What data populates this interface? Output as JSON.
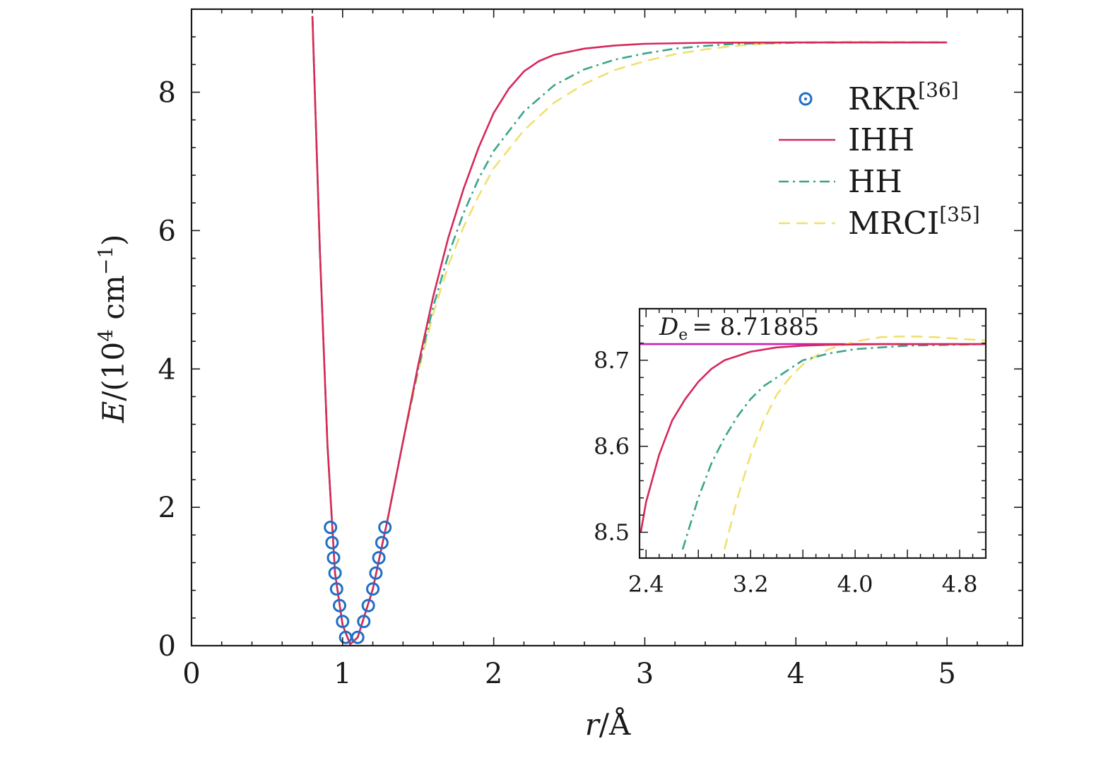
{
  "chart_data": [
    {
      "type": "line",
      "xlabel_var": "r",
      "xlabel_unit": "/Å",
      "ylabel_var": "E",
      "ylabel_unit_pre": "/(10",
      "ylabel_unit_sup": "4",
      "ylabel_unit_mid": " cm",
      "ylabel_unit_sup2": "−1",
      "ylabel_unit_post": ")",
      "xlim": [
        0,
        5.5
      ],
      "ylim": [
        0,
        9.2
      ],
      "x_ticks": [
        "0",
        "1",
        "2",
        "3",
        "4",
        "5"
      ],
      "y_ticks": [
        "0",
        "2",
        "4",
        "6",
        "8"
      ],
      "legend_position": "top-right",
      "legend": [
        {
          "label": "RKR",
          "sup": "[36]",
          "style": "circles",
          "color": "#1f6fc5"
        },
        {
          "label": "IHH",
          "sup": "",
          "style": "solid",
          "color": "#d6285a"
        },
        {
          "label": "HH",
          "sup": "",
          "style": "dash-dot",
          "color": "#3aa58a"
        },
        {
          "label": "MRCI",
          "sup": "[35]",
          "style": "dashed",
          "color": "#f0e070"
        }
      ],
      "series": [
        {
          "name": "RKR",
          "style": "circles",
          "color": "#1f6fc5",
          "points": [
            [
              0.92,
              1.71
            ],
            [
              0.93,
              1.49
            ],
            [
              0.94,
              1.27
            ],
            [
              0.95,
              1.05
            ],
            [
              0.96,
              0.82
            ],
            [
              0.98,
              0.58
            ],
            [
              1.0,
              0.35
            ],
            [
              1.02,
              0.12
            ],
            [
              1.1,
              0.12
            ],
            [
              1.14,
              0.35
            ],
            [
              1.17,
              0.58
            ],
            [
              1.2,
              0.82
            ],
            [
              1.22,
              1.05
            ],
            [
              1.24,
              1.27
            ],
            [
              1.26,
              1.49
            ],
            [
              1.28,
              1.71
            ]
          ]
        },
        {
          "name": "IHH",
          "style": "solid",
          "color": "#d6285a",
          "points": [
            [
              0.8,
              9.1
            ],
            [
              0.85,
              5.7
            ],
            [
              0.9,
              2.9
            ],
            [
              0.95,
              1.05
            ],
            [
              1.0,
              0.3
            ],
            [
              1.05,
              0.02
            ],
            [
              1.1,
              0.12
            ],
            [
              1.2,
              0.82
            ],
            [
              1.3,
              1.85
            ],
            [
              1.4,
              2.95
            ],
            [
              1.5,
              4.05
            ],
            [
              1.6,
              5.05
            ],
            [
              1.7,
              5.9
            ],
            [
              1.8,
              6.6
            ],
            [
              1.9,
              7.2
            ],
            [
              2.0,
              7.7
            ],
            [
              2.1,
              8.05
            ],
            [
              2.2,
              8.3
            ],
            [
              2.3,
              8.45
            ],
            [
              2.4,
              8.54
            ],
            [
              2.6,
              8.63
            ],
            [
              2.8,
              8.675
            ],
            [
              3.0,
              8.7
            ],
            [
              3.4,
              8.715
            ],
            [
              4.0,
              8.7188
            ],
            [
              5.0,
              8.7188
            ]
          ]
        },
        {
          "name": "HH",
          "style": "dash-dot",
          "color": "#3aa58a",
          "points": [
            [
              0.8,
              9.1
            ],
            [
              0.85,
              5.7
            ],
            [
              0.9,
              2.9
            ],
            [
              0.95,
              1.05
            ],
            [
              1.0,
              0.3
            ],
            [
              1.05,
              0.02
            ],
            [
              1.1,
              0.12
            ],
            [
              1.2,
              0.82
            ],
            [
              1.3,
              1.85
            ],
            [
              1.4,
              2.95
            ],
            [
              1.5,
              4.0
            ],
            [
              1.6,
              4.9
            ],
            [
              1.7,
              5.65
            ],
            [
              1.8,
              6.25
            ],
            [
              1.9,
              6.75
            ],
            [
              2.0,
              7.15
            ],
            [
              2.2,
              7.72
            ],
            [
              2.4,
              8.1
            ],
            [
              2.6,
              8.33
            ],
            [
              2.8,
              8.47
            ],
            [
              3.0,
              8.56
            ],
            [
              3.2,
              8.63
            ],
            [
              3.4,
              8.67
            ],
            [
              3.6,
              8.7
            ],
            [
              4.0,
              8.715
            ],
            [
              4.4,
              8.718
            ],
            [
              5.0,
              8.7188
            ]
          ]
        },
        {
          "name": "MRCI",
          "style": "dashed",
          "color": "#f0e070",
          "points": [
            [
              0.8,
              9.1
            ],
            [
              0.85,
              5.7
            ],
            [
              0.9,
              2.9
            ],
            [
              0.95,
              1.05
            ],
            [
              1.0,
              0.3
            ],
            [
              1.05,
              0.02
            ],
            [
              1.1,
              0.12
            ],
            [
              1.2,
              0.82
            ],
            [
              1.3,
              1.85
            ],
            [
              1.4,
              2.95
            ],
            [
              1.5,
              3.95
            ],
            [
              1.6,
              4.8
            ],
            [
              1.7,
              5.5
            ],
            [
              1.8,
              6.05
            ],
            [
              1.9,
              6.5
            ],
            [
              2.0,
              6.9
            ],
            [
              2.2,
              7.45
            ],
            [
              2.4,
              7.85
            ],
            [
              2.6,
              8.12
            ],
            [
              2.8,
              8.32
            ],
            [
              3.0,
              8.45
            ],
            [
              3.2,
              8.55
            ],
            [
              3.4,
              8.62
            ],
            [
              3.6,
              8.67
            ],
            [
              3.8,
              8.7
            ],
            [
              4.0,
              8.72
            ],
            [
              4.4,
              8.73
            ],
            [
              5.0,
              8.722
            ]
          ]
        }
      ]
    },
    {
      "type": "line",
      "role": "inset",
      "xlim": [
        2.35,
        5.0
      ],
      "ylim": [
        8.47,
        8.76
      ],
      "x_ticks": [
        "2.4",
        "3.2",
        "4.0",
        "4.8"
      ],
      "y_ticks": [
        "8.5",
        "8.6",
        "8.7"
      ],
      "annotation_var": "D",
      "annotation_sub": "e",
      "annotation_value": "= 8.71885",
      "reference_line": {
        "y": 8.71885,
        "color": "#c81fb4"
      },
      "series": [
        {
          "name": "IHH",
          "style": "solid",
          "color": "#d6285a",
          "points": [
            [
              2.36,
              8.5
            ],
            [
              2.4,
              8.535
            ],
            [
              2.5,
              8.59
            ],
            [
              2.6,
              8.63
            ],
            [
              2.7,
              8.655
            ],
            [
              2.8,
              8.675
            ],
            [
              2.9,
              8.69
            ],
            [
              3.0,
              8.7
            ],
            [
              3.2,
              8.71
            ],
            [
              3.4,
              8.715
            ],
            [
              3.6,
              8.717
            ],
            [
              3.8,
              8.718
            ],
            [
              4.2,
              8.7188
            ],
            [
              5.0,
              8.7188
            ]
          ]
        },
        {
          "name": "HH",
          "style": "dash-dot",
          "color": "#3aa58a",
          "points": [
            [
              2.68,
              8.48
            ],
            [
              2.8,
              8.54
            ],
            [
              2.9,
              8.58
            ],
            [
              3.0,
              8.61
            ],
            [
              3.1,
              8.635
            ],
            [
              3.2,
              8.655
            ],
            [
              3.3,
              8.67
            ],
            [
              3.4,
              8.68
            ],
            [
              3.5,
              8.69
            ],
            [
              3.6,
              8.7
            ],
            [
              3.8,
              8.708
            ],
            [
              4.0,
              8.713
            ],
            [
              4.4,
              8.717
            ],
            [
              5.0,
              8.7188
            ]
          ]
        },
        {
          "name": "MRCI",
          "style": "dashed",
          "color": "#f0e070",
          "points": [
            [
              3.0,
              8.48
            ],
            [
              3.1,
              8.54
            ],
            [
              3.2,
              8.59
            ],
            [
              3.3,
              8.63
            ],
            [
              3.4,
              8.66
            ],
            [
              3.5,
              8.68
            ],
            [
              3.6,
              8.695
            ],
            [
              3.7,
              8.705
            ],
            [
              3.8,
              8.713
            ],
            [
              4.0,
              8.722
            ],
            [
              4.2,
              8.727
            ],
            [
              4.4,
              8.728
            ],
            [
              4.6,
              8.727
            ],
            [
              4.8,
              8.725
            ],
            [
              5.0,
              8.723
            ]
          ]
        }
      ]
    }
  ]
}
